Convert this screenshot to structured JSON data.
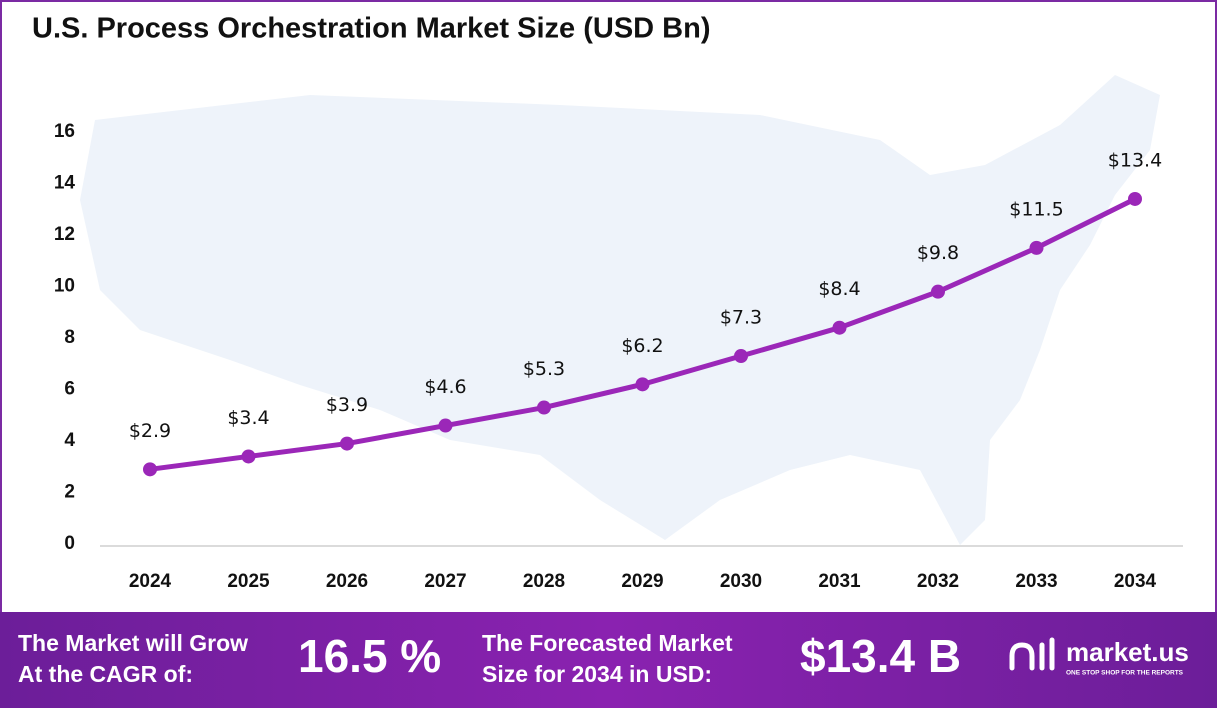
{
  "chart_data": {
    "type": "line",
    "title": "U.S. Process Orchestration Market Size (USD Bn)",
    "categories": [
      "2024",
      "2025",
      "2026",
      "2027",
      "2028",
      "2029",
      "2030",
      "2031",
      "2032",
      "2033",
      "2034"
    ],
    "values": [
      2.9,
      3.4,
      3.9,
      4.6,
      5.3,
      6.2,
      7.3,
      8.4,
      9.8,
      11.5,
      13.4
    ],
    "value_labels": [
      "$2.9",
      "$3.4",
      "$3.9",
      "$4.6",
      "$5.3",
      "$6.2",
      "$7.3",
      "$8.4",
      "$9.8",
      "$11.5",
      "$13.4"
    ],
    "color": "#9b27b8",
    "ylim": [
      0,
      16
    ],
    "yticks": [
      0,
      2,
      4,
      6,
      8,
      10,
      12,
      14,
      16
    ],
    "grid": false
  },
  "footer": {
    "cagr_text": [
      "The Market will Grow",
      "At the CAGR of:"
    ],
    "cagr_value": "16.5 %",
    "forecast_text": [
      "The Forecasted Market",
      "Size for 2034 in USD:"
    ],
    "forecast_value": "$13.4 B",
    "brand": "market.us",
    "tagline": "ONE STOP SHOP FOR THE REPORTS"
  }
}
